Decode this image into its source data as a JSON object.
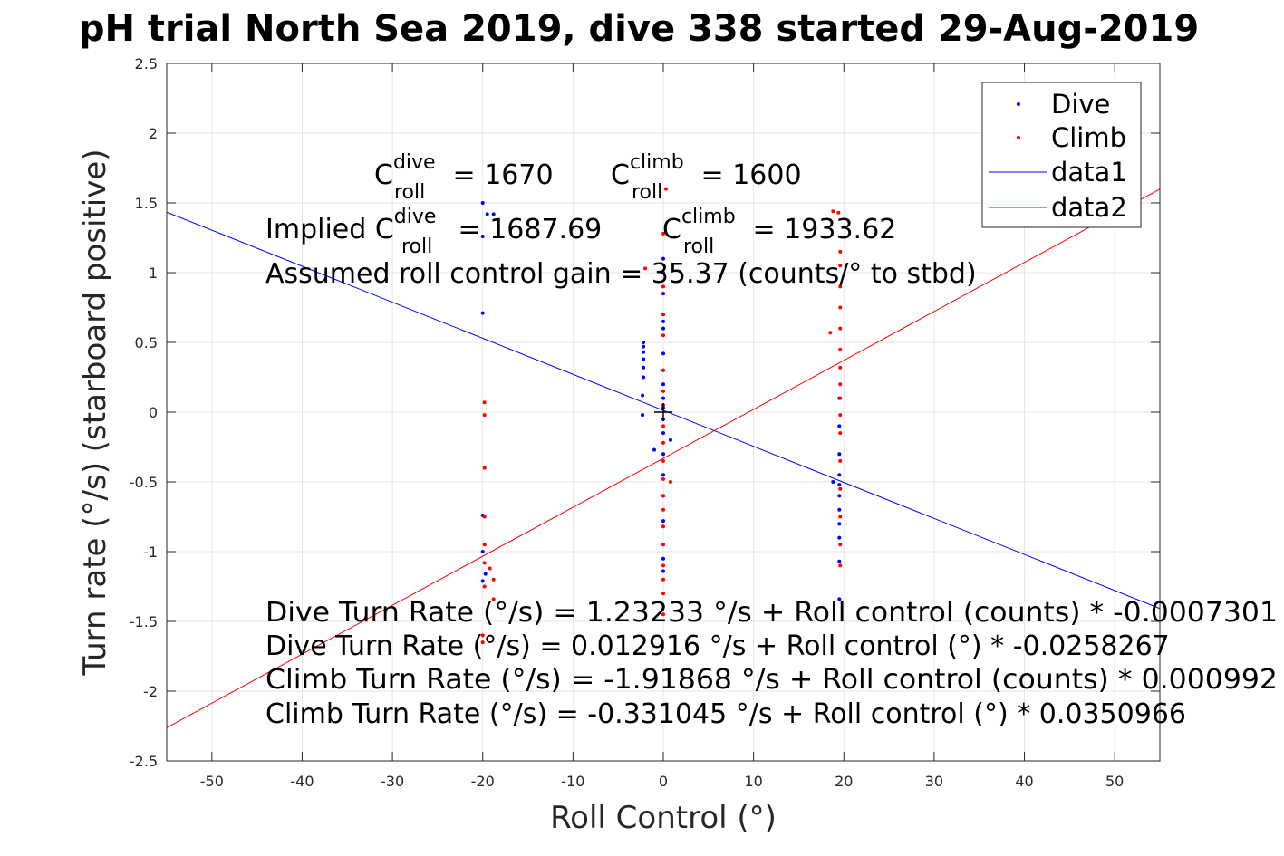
{
  "chart_data": {
    "type": "scatter",
    "title": "pH trial North Sea 2019, dive 338 started 29-Aug-2019",
    "xlabel": "Roll Control (°)",
    "ylabel": "Turn rate (°/s) (starboard positive)",
    "xlim": [
      -55,
      55
    ],
    "ylim": [
      -2.5,
      2.5
    ],
    "xticks": [
      -50,
      -40,
      -30,
      -20,
      -10,
      0,
      10,
      20,
      30,
      40,
      50
    ],
    "yticks": [
      -2.5,
      -2,
      -1.5,
      -1,
      -0.5,
      0,
      0.5,
      1,
      1.5,
      2,
      2.5
    ],
    "xtick_labels": [
      "-50",
      "-40",
      "-30",
      "-20",
      "-10",
      "0",
      "10",
      "20",
      "30",
      "40",
      "50"
    ],
    "ytick_labels": [
      "-2.5",
      "-2",
      "-1.5",
      "-1",
      "-0.5",
      "0",
      "0.5",
      "1",
      "1.5",
      "2",
      "2.5"
    ],
    "grid": true,
    "legend_position": "top-right",
    "series": [
      {
        "name": "Dive",
        "kind": "scatter",
        "color": "#0000ff",
        "points": [
          [
            -20,
            1.5
          ],
          [
            -19.5,
            1.42
          ],
          [
            -18.8,
            1.42
          ],
          [
            -20,
            1.26
          ],
          [
            -20,
            0.71
          ],
          [
            -20,
            -0.74
          ],
          [
            -20,
            -1.0
          ],
          [
            -20,
            -1.21
          ],
          [
            -19.7,
            -1.16
          ],
          [
            -2.2,
            0.5
          ],
          [
            -2.2,
            0.47
          ],
          [
            -2.2,
            0.43
          ],
          [
            -2.2,
            0.38
          ],
          [
            -2.2,
            0.32
          ],
          [
            -2.2,
            0.25
          ],
          [
            -2.3,
            0.12
          ],
          [
            -2.3,
            -0.02
          ],
          [
            -1.0,
            -0.27
          ],
          [
            0.8,
            -0.2
          ],
          [
            0,
            1.1
          ],
          [
            0,
            1.0
          ],
          [
            0,
            0.85
          ],
          [
            0,
            0.65
          ],
          [
            0,
            0.6
          ],
          [
            0,
            0.42
          ],
          [
            0,
            0.3
          ],
          [
            0,
            0.2
          ],
          [
            0,
            0.1
          ],
          [
            0,
            0.03
          ],
          [
            0,
            -0.05
          ],
          [
            0,
            -0.15
          ],
          [
            0,
            -0.3
          ],
          [
            0,
            -0.45
          ],
          [
            0,
            -0.6
          ],
          [
            0,
            -0.78
          ],
          [
            0,
            -1.05
          ],
          [
            0,
            -1.14
          ],
          [
            19.5,
            0.1
          ],
          [
            19.5,
            -0.1
          ],
          [
            19.5,
            -0.3
          ],
          [
            19.5,
            -0.45
          ],
          [
            19.5,
            -0.52
          ],
          [
            19.5,
            -0.6
          ],
          [
            19.5,
            -0.7
          ],
          [
            19.5,
            -0.8
          ],
          [
            19.5,
            -0.9
          ],
          [
            19.5,
            -1.07
          ],
          [
            19.5,
            -1.34
          ],
          [
            18.8,
            -0.5
          ]
        ]
      },
      {
        "name": "Climb",
        "kind": "scatter",
        "color": "#ff0000",
        "points": [
          [
            -19.8,
            0.07
          ],
          [
            -19.8,
            -0.02
          ],
          [
            -19.8,
            -0.4
          ],
          [
            -19.8,
            -0.75
          ],
          [
            -19.8,
            -0.95
          ],
          [
            -19.8,
            -1.08
          ],
          [
            -19.8,
            -1.25
          ],
          [
            -19.2,
            -1.12
          ],
          [
            -18.8,
            -1.2
          ],
          [
            -18.8,
            -1.34
          ],
          [
            -20,
            -1.6
          ],
          [
            -20,
            -1.65
          ],
          [
            -2.0,
            1.03
          ],
          [
            0.3,
            1.6
          ],
          [
            0,
            1.28
          ],
          [
            0,
            0.9
          ],
          [
            0,
            0.7
          ],
          [
            0,
            0.55
          ],
          [
            0,
            0.3
          ],
          [
            0,
            0.15
          ],
          [
            0,
            0.05
          ],
          [
            0,
            -0.1
          ],
          [
            0,
            -0.22
          ],
          [
            0,
            -0.35
          ],
          [
            0,
            -0.48
          ],
          [
            0,
            -0.6
          ],
          [
            0,
            -0.7
          ],
          [
            0,
            -0.82
          ],
          [
            0,
            -0.95
          ],
          [
            0,
            -1.1
          ],
          [
            0,
            -1.2
          ],
          [
            0,
            -1.3
          ],
          [
            0,
            -1.45
          ],
          [
            0.8,
            -0.5
          ],
          [
            18.8,
            1.44
          ],
          [
            19.4,
            1.43
          ],
          [
            19.6,
            1.15
          ],
          [
            19.6,
            1.05
          ],
          [
            19.6,
            0.9
          ],
          [
            19.6,
            0.75
          ],
          [
            19.6,
            0.6
          ],
          [
            19.6,
            0.45
          ],
          [
            19.6,
            0.32
          ],
          [
            19.6,
            0.2
          ],
          [
            19.6,
            0.1
          ],
          [
            19.6,
            -0.02
          ],
          [
            19.6,
            -0.15
          ],
          [
            19.6,
            -0.35
          ],
          [
            19.6,
            -0.55
          ],
          [
            19.6,
            -0.75
          ],
          [
            19.6,
            -0.95
          ],
          [
            19.6,
            -1.1
          ],
          [
            18.5,
            0.57
          ]
        ]
      },
      {
        "name": "data1",
        "kind": "line",
        "color": "#0000ff",
        "x": [
          -55,
          55
        ],
        "y": [
          1.4335,
          -1.4076
        ]
      },
      {
        "name": "data2",
        "kind": "line",
        "color": "#ff0000",
        "x": [
          -55,
          55
        ],
        "y": [
          -2.2614,
          1.5993
        ]
      }
    ],
    "marker": {
      "x": 0,
      "y": 0,
      "shape": "plus"
    },
    "annotations": {
      "c_dive": {
        "main": "C",
        "sup": "dive",
        "sub": "roll",
        "rest": " = 1670"
      },
      "c_climb": {
        "main": "C",
        "sup": "climb",
        "sub": "roll",
        "rest": " = 1600"
      },
      "implied_dive": {
        "prefix": "Implied ",
        "main": "C",
        "sup": "dive",
        "sub": "roll",
        "rest": " = 1687.69"
      },
      "implied_climb": {
        "main": "C",
        "sup": "climb",
        "sub": "roll",
        "rest": " = 1933.62"
      },
      "gain": "Assumed roll control gain = 35.37 (counts/° to stbd)",
      "eq1": "Dive Turn Rate (°/s) = 1.23233 °/s + Roll control (counts) * -0.0007301",
      "eq2": "Dive Turn Rate (°/s) = 0.012916 °/s + Roll control (°) * -0.0258267",
      "eq3": "Climb Turn Rate (°/s) = -1.91868 °/s + Roll control (counts) * 0.000992",
      "eq4": "Climb Turn Rate (°/s) = -0.331045 °/s + Roll control (°) * 0.0350966"
    }
  }
}
